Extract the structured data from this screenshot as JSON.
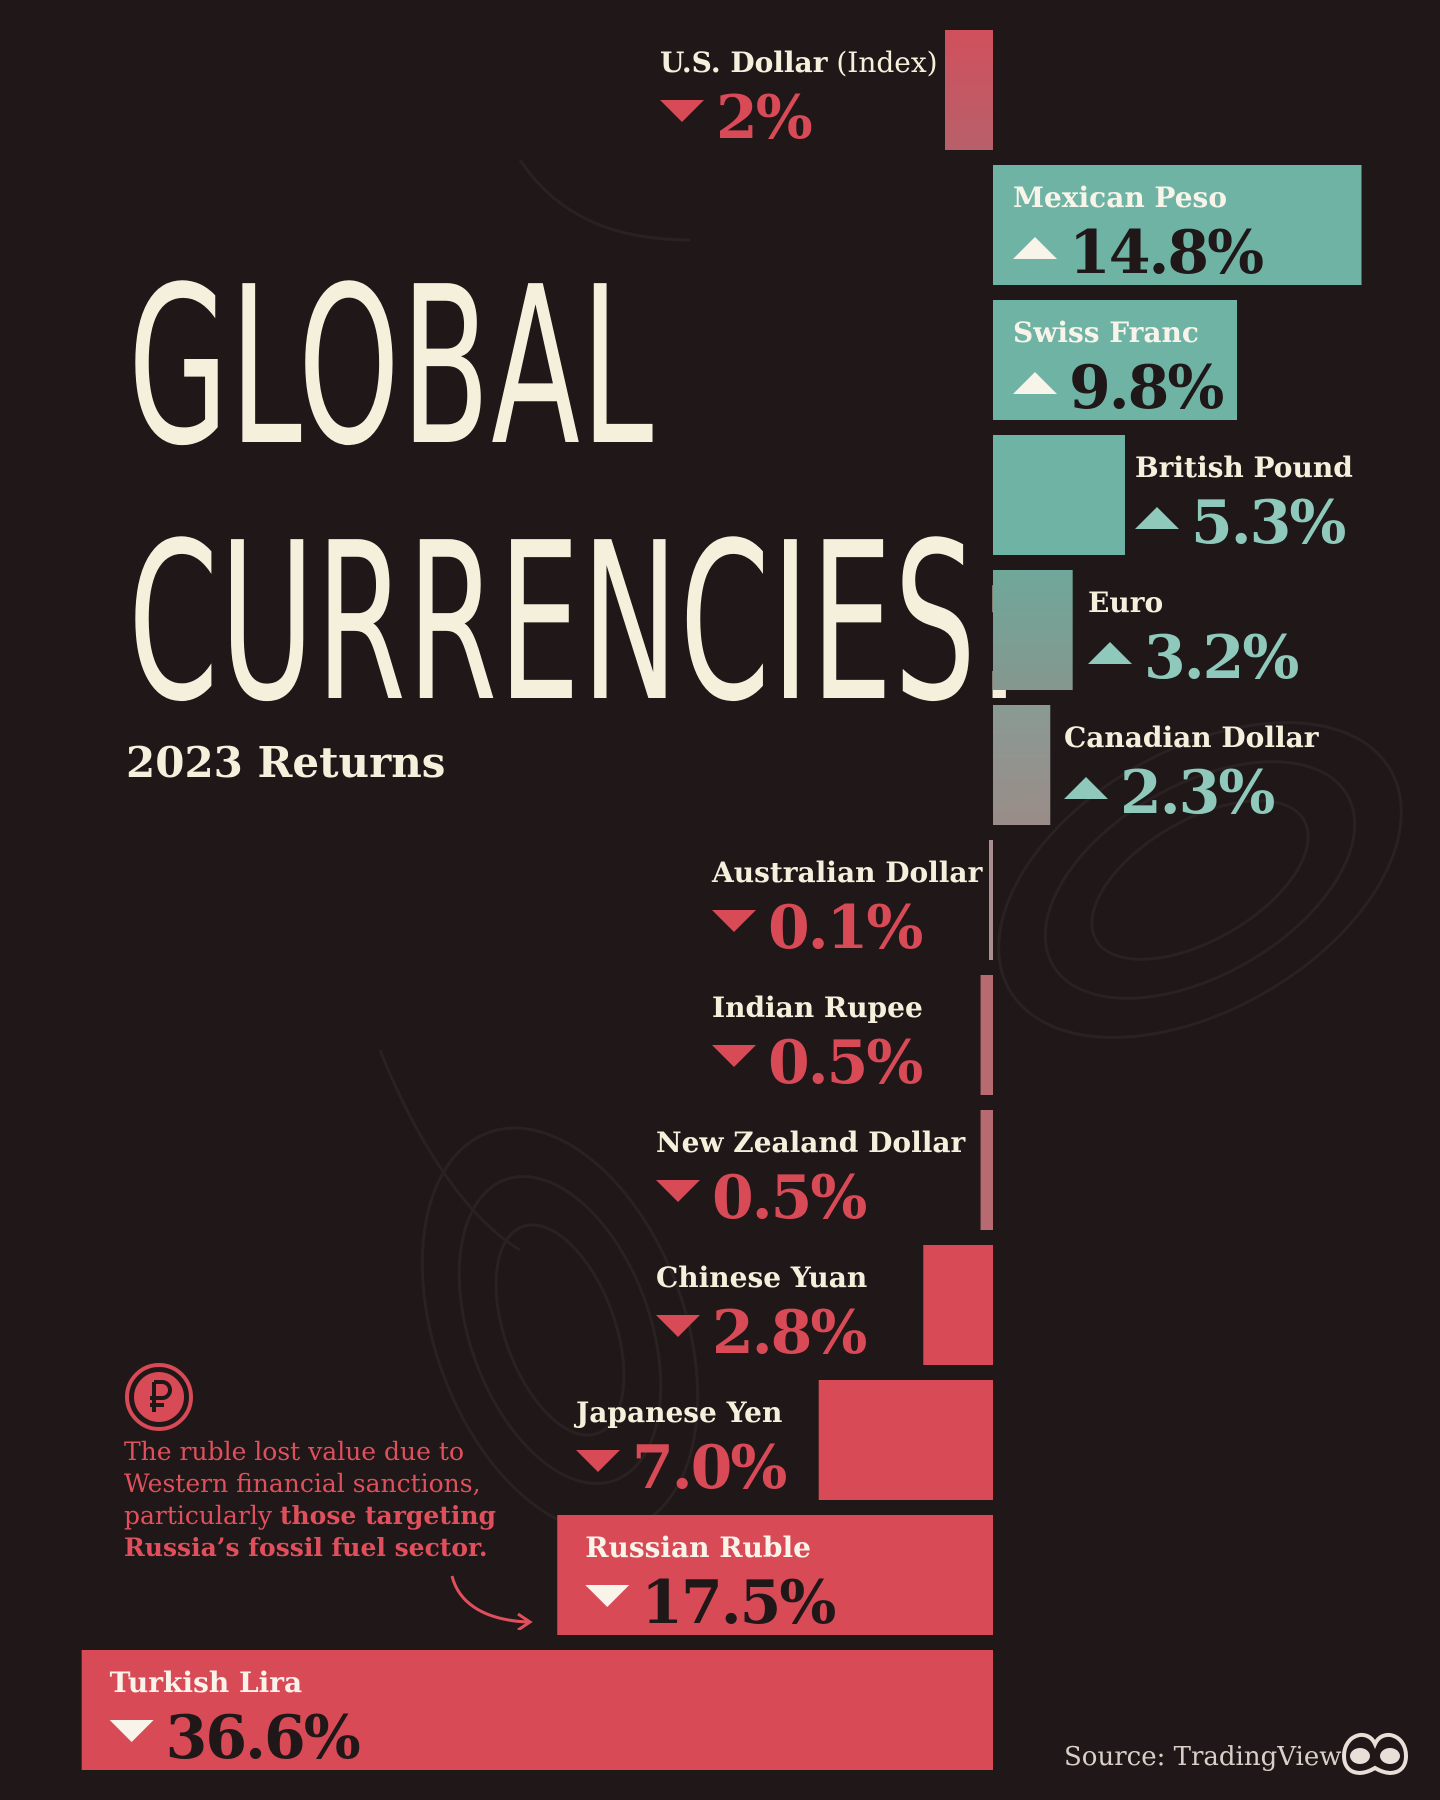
{
  "header": {
    "title_line1": "GLOBAL",
    "title_line2": "CURRENCIES:",
    "subtitle": "2023 Returns"
  },
  "annotation": {
    "text_plain": "The ruble lost value due to Western financial sanctions, particularly ",
    "text_bold": "those targeting Russia’s fossil fuel sector.",
    "icon": "ruble-icon"
  },
  "footer": {
    "source": "Source: TradingView",
    "logo_icon": "visual-capitalist-logo-icon"
  },
  "colors": {
    "positive": "#6fb3a4",
    "negative": "#d94a57",
    "background": "#1f1718",
    "title": "#f5f0dc"
  },
  "chart_data": {
    "type": "bar",
    "orientation": "horizontal-diverging",
    "title": "GLOBAL CURRENCIES:",
    "subtitle": "2023 Returns",
    "unit": "%",
    "series": [
      {
        "values": [
          -2,
          14.8,
          9.8,
          5.3,
          3.2,
          2.3,
          -0.1,
          -0.5,
          -0.5,
          -2.8,
          -7.0,
          -17.5,
          -36.6
        ]
      }
    ],
    "categories": [
      "U.S. Dollar",
      "Mexican Peso",
      "Swiss Franc",
      "British Pound",
      "Euro",
      "Canadian Dollar",
      "Australian Dollar",
      "Indian Rupee",
      "New Zealand Dollar",
      "Chinese Yuan",
      "Japanese Yen",
      "Russian Ruble",
      "Turkish Lira"
    ],
    "category_suffix": [
      " (Index)",
      "",
      "",
      "",
      "",
      "",
      "",
      "",
      "",
      "",
      "",
      "",
      ""
    ],
    "value_labels": [
      "2%",
      "14.8%",
      "9.8%",
      "5.3%",
      "3.2%",
      "2.3%",
      "0.1%",
      "0.5%",
      "0.5%",
      "2.8%",
      "7.0%",
      "17.5%",
      "36.6%"
    ],
    "label_placement": [
      "outside",
      "inside",
      "inside",
      "outside",
      "outside",
      "outside",
      "outside",
      "outside",
      "outside",
      "outside",
      "outside",
      "inside",
      "inside"
    ]
  }
}
